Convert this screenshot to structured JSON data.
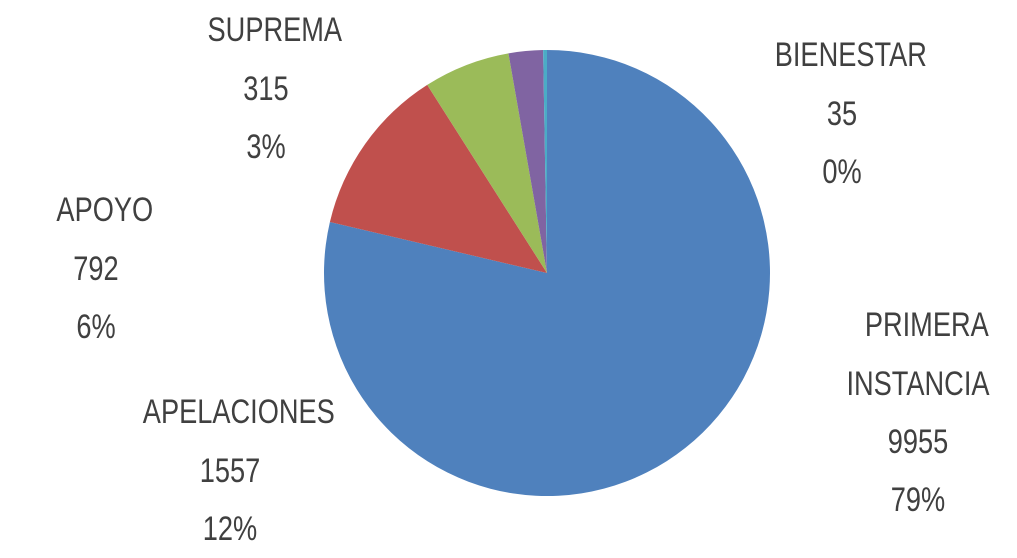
{
  "chart_data": {
    "type": "pie",
    "categories": [
      "PRIMERA INSTANCIA",
      "APELACIONES",
      "APOYO",
      "SUPREMA",
      "BIENESTAR"
    ],
    "values": [
      9955,
      1557,
      792,
      315,
      35
    ],
    "percent_labels": [
      "79%",
      "12%",
      "6%",
      "3%",
      "0%"
    ],
    "colors": [
      "#4f81bd",
      "#c0504d",
      "#9bbb59",
      "#8064a2",
      "#4bacc6"
    ]
  }
}
